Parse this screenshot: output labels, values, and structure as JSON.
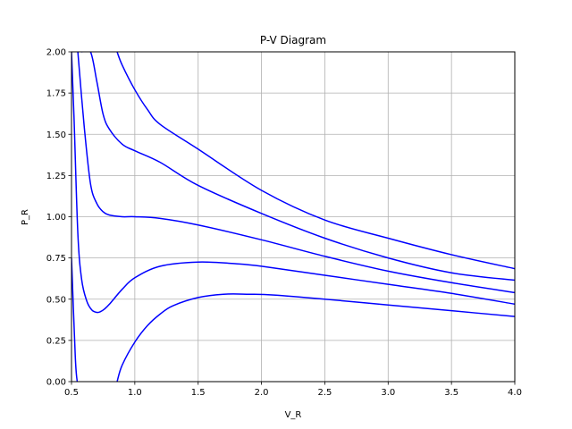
{
  "chart_data": {
    "type": "line",
    "title": "P-V Diagram",
    "xlabel": "V_R",
    "ylabel": "P_R",
    "xlim": [
      0.5,
      4.0
    ],
    "ylim": [
      0.0,
      2.0
    ],
    "xticks": [
      "0.5",
      "1.0",
      "1.5",
      "2.0",
      "2.5",
      "3.0",
      "3.5",
      "4.0"
    ],
    "yticks": [
      "0.00",
      "0.25",
      "0.50",
      "0.75",
      "1.00",
      "1.25",
      "1.50",
      "1.75",
      "2.00"
    ],
    "grid": true,
    "line_color": "#0000ff",
    "series": [
      {
        "x": [
          0.5,
          0.53,
          0.545,
          0.6,
          0.65,
          0.7,
          0.75,
          0.8,
          0.9,
          1.0,
          1.2,
          1.5,
          2.0,
          2.5,
          3.0,
          3.5,
          4.0
        ],
        "y": [
          0.75,
          0.15,
          0.0,
          null,
          null,
          null,
          null,
          null,
          null,
          null,
          null,
          null,
          null,
          null,
          null,
          null,
          null
        ]
      },
      {
        "x": [
          0.86,
          0.9,
          1.0,
          1.1,
          1.2,
          1.3,
          1.5,
          1.7,
          1.9,
          2.1,
          2.5,
          3.0,
          3.5,
          4.0
        ],
        "y": [
          0.0,
          0.1,
          0.24,
          0.34,
          0.41,
          0.46,
          0.51,
          0.53,
          0.53,
          0.525,
          0.5,
          0.465,
          0.43,
          0.395
        ]
      },
      {
        "x": [
          0.5,
          0.52,
          0.55,
          0.58,
          0.62,
          0.66,
          0.7,
          0.73,
          0.76,
          0.8,
          0.9,
          1.0,
          1.2,
          1.5,
          1.8,
          2.0,
          2.5,
          3.0,
          3.5,
          4.0
        ],
        "y": [
          2.0,
          1.6,
          0.9,
          0.62,
          0.49,
          0.435,
          0.42,
          0.425,
          0.44,
          0.47,
          0.56,
          0.63,
          0.7,
          0.725,
          0.715,
          0.7,
          0.645,
          0.59,
          0.535,
          0.47
        ]
      },
      {
        "x": [
          0.55,
          0.6,
          0.65,
          0.7,
          0.75,
          0.8,
          0.9,
          1.0,
          1.2,
          1.5,
          2.0,
          2.5,
          3.0,
          3.5,
          4.0
        ],
        "y": [
          2.0,
          1.55,
          1.2,
          1.08,
          1.03,
          1.01,
          1.0,
          1.0,
          0.99,
          0.95,
          0.86,
          0.76,
          0.67,
          0.6,
          0.54
        ]
      },
      {
        "x": [
          0.58,
          0.65,
          0.7,
          0.75,
          0.8,
          0.9,
          1.0,
          1.2,
          1.5,
          2.0,
          2.5,
          3.0,
          3.5,
          4.0
        ],
        "y": [
          2.0,
          2.0,
          1.82,
          1.62,
          1.53,
          1.44,
          1.4,
          1.33,
          1.19,
          1.02,
          0.87,
          0.75,
          0.66,
          0.615
        ]
      },
      {
        "x": [
          0.86,
          0.9,
          1.0,
          1.1,
          1.2,
          1.5,
          2.0,
          2.5,
          3.0,
          3.5,
          4.0
        ],
        "y": [
          2.0,
          1.92,
          1.77,
          1.65,
          1.56,
          1.41,
          1.16,
          0.98,
          0.87,
          0.77,
          0.685
        ]
      }
    ]
  }
}
